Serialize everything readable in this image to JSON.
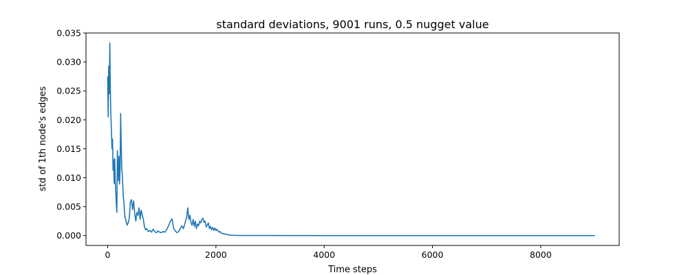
{
  "chart_data": {
    "type": "line",
    "title": "standard deviations, 9001 runs, 0.5 nugget value",
    "xlabel": "Time steps",
    "ylabel": "std of 1th node's edges",
    "xlim": [
      -400,
      9450
    ],
    "ylim": [
      -0.0017,
      0.035
    ],
    "xticks": [
      0,
      2000,
      4000,
      6000,
      8000
    ],
    "xtick_labels": [
      "0",
      "2000",
      "4000",
      "6000",
      "8000"
    ],
    "yticks": [
      0.0,
      0.005,
      0.01,
      0.015,
      0.02,
      0.025,
      0.03,
      0.035
    ],
    "ytick_labels": [
      "0.000",
      "0.005",
      "0.010",
      "0.015",
      "0.020",
      "0.025",
      "0.030",
      "0.035"
    ],
    "grid": false,
    "series": [
      {
        "color": "#1f77b4",
        "x": [
          0,
          10,
          20,
          30,
          40,
          50,
          60,
          70,
          80,
          90,
          100,
          110,
          120,
          130,
          140,
          150,
          160,
          170,
          180,
          190,
          200,
          210,
          220,
          230,
          240,
          250,
          260,
          270,
          280,
          290,
          300,
          310,
          320,
          340,
          360,
          380,
          400,
          420,
          440,
          460,
          480,
          500,
          520,
          540,
          560,
          580,
          600,
          620,
          640,
          660,
          680,
          700,
          720,
          750,
          780,
          810,
          840,
          870,
          900,
          930,
          960,
          990,
          1020,
          1060,
          1100,
          1130,
          1160,
          1190,
          1220,
          1250,
          1280,
          1310,
          1340,
          1370,
          1400,
          1430,
          1460,
          1480,
          1500,
          1520,
          1540,
          1560,
          1580,
          1600,
          1620,
          1640,
          1660,
          1680,
          1700,
          1720,
          1740,
          1760,
          1780,
          1800,
          1820,
          1840,
          1860,
          1880,
          1900,
          1920,
          1940,
          1960,
          1980,
          2000,
          2020,
          2040,
          2060,
          2080,
          2100,
          2150,
          2200,
          2250,
          2300,
          2350,
          2400,
          2500,
          3000,
          4000,
          5000,
          6000,
          7000,
          8000,
          9000
        ],
        "y": [
          0.0275,
          0.0205,
          0.0293,
          0.0245,
          0.0333,
          0.025,
          0.0207,
          0.018,
          0.015,
          0.0167,
          0.0113,
          0.0131,
          0.009,
          0.0133,
          0.0095,
          0.0075,
          0.0055,
          0.004,
          0.0147,
          0.0122,
          0.0095,
          0.0137,
          0.0089,
          0.0115,
          0.0211,
          0.016,
          0.0118,
          0.0105,
          0.0085,
          0.0065,
          0.006,
          0.0042,
          0.0032,
          0.0025,
          0.0018,
          0.0022,
          0.003,
          0.0058,
          0.0062,
          0.0045,
          0.006,
          0.0038,
          0.0025,
          0.004,
          0.0035,
          0.0048,
          0.0028,
          0.0044,
          0.0035,
          0.0028,
          0.0015,
          0.001,
          0.0012,
          0.0007,
          0.0009,
          0.0006,
          0.0011,
          0.0007,
          0.0005,
          0.0008,
          0.0006,
          0.0005,
          0.0007,
          0.0006,
          0.0012,
          0.0018,
          0.0025,
          0.0029,
          0.0012,
          0.0008,
          0.0005,
          0.0007,
          0.0012,
          0.0017,
          0.0012,
          0.0022,
          0.0032,
          0.0048,
          0.0028,
          0.0035,
          0.0022,
          0.0018,
          0.0028,
          0.0016,
          0.0025,
          0.0012,
          0.002,
          0.0017,
          0.0025,
          0.0022,
          0.0028,
          0.003,
          0.0023,
          0.0025,
          0.0015,
          0.0018,
          0.0022,
          0.0012,
          0.0016,
          0.001,
          0.0014,
          0.0009,
          0.0013,
          0.0009,
          0.0011,
          0.0008,
          0.0006,
          0.0007,
          0.0004,
          0.0003,
          0.0002,
          0.0001,
          6e-05,
          4e-05,
          3e-05,
          2e-05,
          1e-05,
          0.0,
          0.0,
          0.0,
          0.0,
          0.0,
          0.0
        ]
      }
    ]
  }
}
